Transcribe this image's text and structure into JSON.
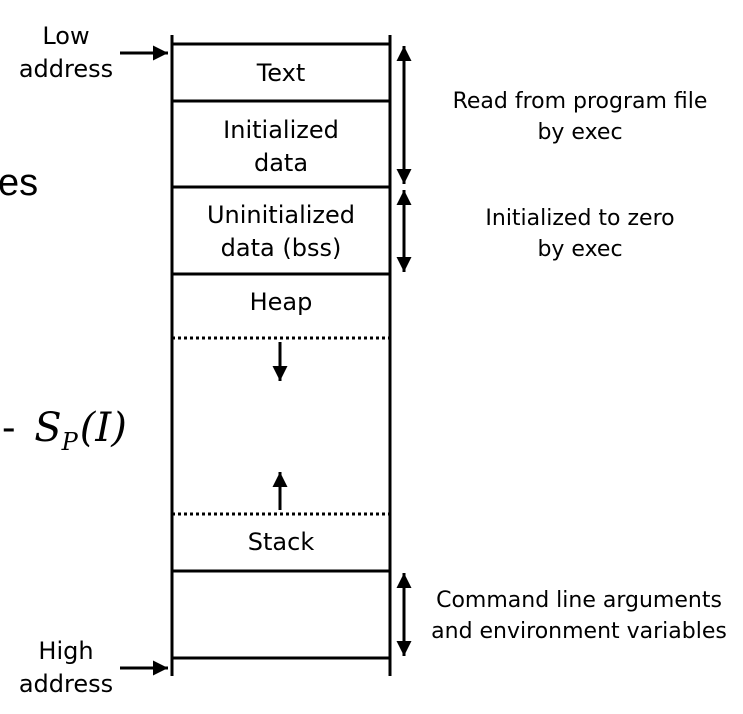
{
  "left_labels": {
    "low": [
      "Low",
      "address"
    ],
    "high": [
      "High",
      "address"
    ]
  },
  "segments": {
    "text": "Text",
    "initialized_data": [
      "Initialized",
      "data"
    ],
    "uninitialized_data": [
      "Uninitialized",
      "data (bss)"
    ],
    "heap": "Heap",
    "stack": "Stack"
  },
  "annotations": {
    "read_from_program": [
      "Read from program file",
      "by exec"
    ],
    "initialized_zero": [
      "Initialized to zero",
      "by exec"
    ],
    "command_line": [
      "Command line arguments",
      "and environment variables"
    ]
  },
  "background_fragments": {
    "es": "es",
    "formula_dash": "-",
    "formula_s": "S",
    "formula_sub": "P",
    "formula_arg": "(I)"
  }
}
